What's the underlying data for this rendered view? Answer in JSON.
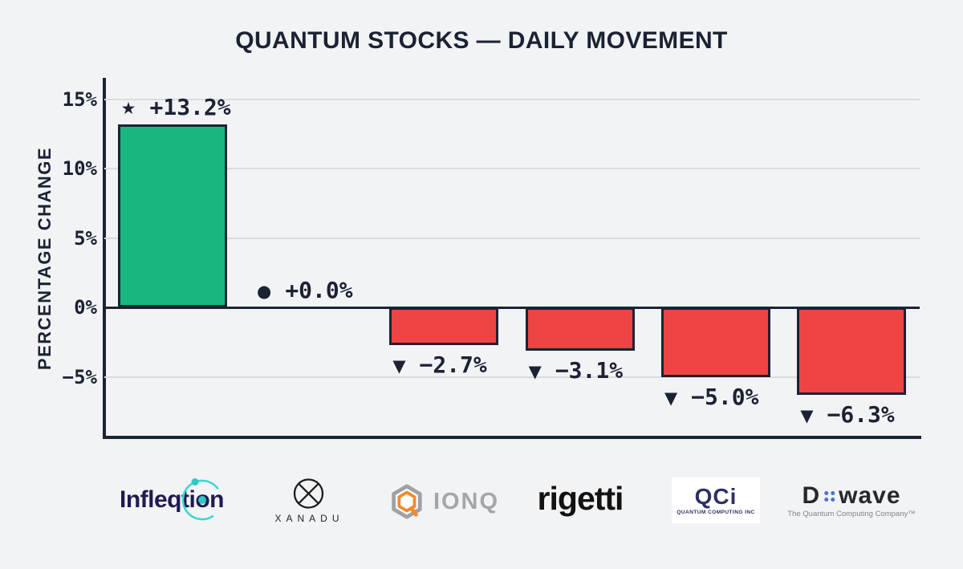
{
  "title": "QUANTUM STOCKS — DAILY MOVEMENT",
  "colors": {
    "background": "#f2f3f5",
    "axis": "#1b2333",
    "grid": "#d9dbe0",
    "text": "#1b2232",
    "positive": "#19b67d",
    "negative": "#ef4444"
  },
  "chart_data": {
    "type": "bar",
    "title": "QUANTUM STOCKS — DAILY MOVEMENT",
    "ylabel": "PERCENTAGE CHANGE",
    "ylim": [
      -8.7,
      16.5
    ],
    "grid": "horizontal",
    "yticks": [
      {
        "label": "15%",
        "value": 15
      },
      {
        "label": "10%",
        "value": 10
      },
      {
        "label": "5%",
        "value": 5
      },
      {
        "label": "0%",
        "value": 0
      },
      {
        "label": "−5%",
        "value": -5
      }
    ],
    "categories": [
      "Infleqtion",
      "Xanadu",
      "IonQ",
      "Rigetti",
      "QCI",
      "D-Wave"
    ],
    "values": [
      13.2,
      0.0,
      -2.7,
      -3.1,
      -5.0,
      -6.3
    ],
    "bars": [
      {
        "company": "Infleqtion",
        "value": 13.2,
        "label": "+13.2%",
        "marker": "star-icon"
      },
      {
        "company": "Xanadu",
        "value": 0.0,
        "label": "+0.0%",
        "marker": "dot-icon"
      },
      {
        "company": "IonQ",
        "value": -2.7,
        "label": "−2.7%",
        "marker": "triangle-down-icon"
      },
      {
        "company": "Rigetti",
        "value": -3.1,
        "label": "−3.1%",
        "marker": "triangle-down-icon"
      },
      {
        "company": "QCI",
        "value": -5.0,
        "label": "−5.0%",
        "marker": "triangle-down-icon"
      },
      {
        "company": "D-Wave",
        "value": -6.3,
        "label": "−6.3%",
        "marker": "triangle-down-icon"
      }
    ]
  },
  "logos": {
    "infleqtion": {
      "part1": "Infleqti",
      "part2": "o",
      "part3": "n"
    },
    "xanadu": {
      "wordmark": "XANADU"
    },
    "ionq": {
      "wordmark": "IONQ"
    },
    "rigetti": {
      "wordmark": "rigetti"
    },
    "qci": {
      "wordmark": "QCi",
      "subtext": "QUANTUM COMPUTING INC"
    },
    "dwave": {
      "part1": "D",
      "part2": "wave",
      "tagline": "The Quantum Computing Company™"
    }
  }
}
